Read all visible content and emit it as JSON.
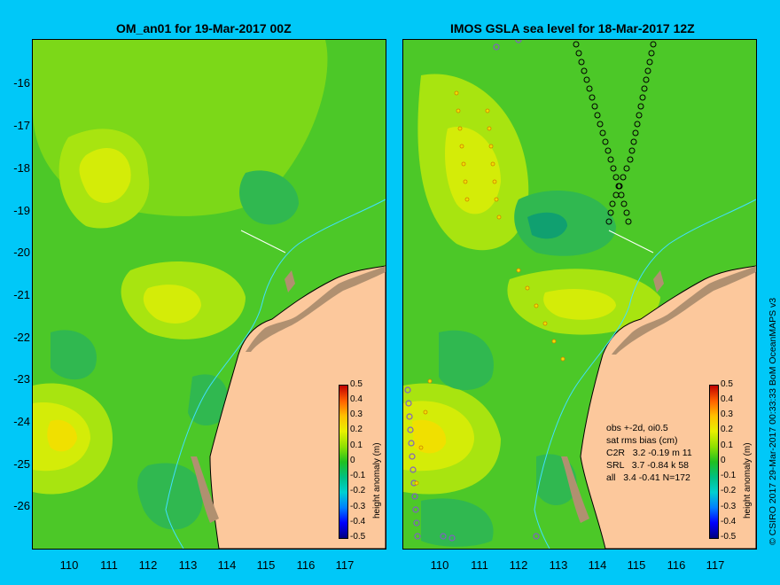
{
  "left_panel": {
    "title": "OM_an01 for 19-Mar-2017 00Z"
  },
  "right_panel": {
    "title": "IMOS GSLA sea level  for 18-Mar-2017 12Z"
  },
  "y_ticks": [
    "-16",
    "-17",
    "-18",
    "-19",
    "-20",
    "-21",
    "-22",
    "-23",
    "-24",
    "-25",
    "-26"
  ],
  "x_ticks": [
    "110",
    "111",
    "112",
    "113",
    "114",
    "115",
    "116",
    "117"
  ],
  "colorbar": {
    "title": "height anomaly (m)",
    "labels": [
      "0.5",
      "0.4",
      "0.3",
      "0.2",
      "0.1",
      "0",
      "-0.1",
      "-0.2",
      "-0.3",
      "-0.4",
      "-0.5"
    ]
  },
  "stats": {
    "line1": "obs +-2d, oi0.5",
    "line2": "sat rms bias (cm)",
    "line3": "C2R   3.2 -0.19 m 11",
    "line4": "SRL   3.7 -0.84 k 58",
    "line5": "all   3.4 -0.41 N=172"
  },
  "credit": "© CSIRO 2017   29-Mar-2017 00:33:33 BoM OceanMAPS v3",
  "colors": {
    "background": "#00c8f8",
    "land": "#fcc89c",
    "sea_base": "#50cc28"
  }
}
